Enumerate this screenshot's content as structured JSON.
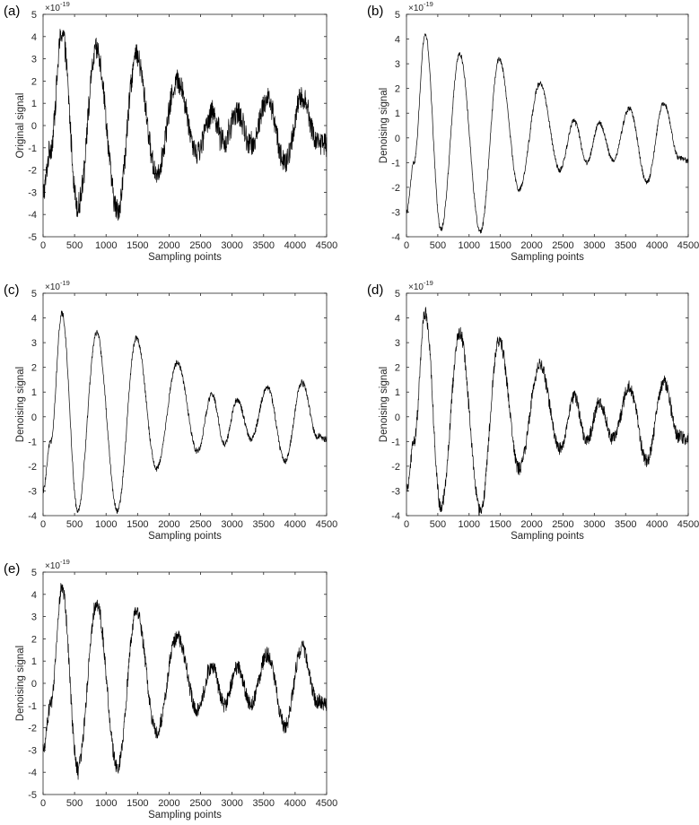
{
  "chart_data": [
    {
      "type": "line",
      "panel": "(a)",
      "xlabel": "Sampling points",
      "ylabel": "Original signal",
      "y_multiplier": "×10⁻¹⁹",
      "xlim": [
        0,
        4500
      ],
      "ylim": [
        -5,
        5
      ],
      "xticks": [
        0,
        500,
        1000,
        1500,
        2000,
        2500,
        3000,
        3500,
        4000,
        4500
      ],
      "yticks": [
        -5,
        -4,
        -3,
        -2,
        -1,
        0,
        1,
        2,
        3,
        4,
        5
      ],
      "noise_band": 0.55,
      "series": [
        {
          "x": [
            0,
            120,
            300,
            550,
            850,
            1180,
            1480,
            1800,
            2130,
            2450,
            2680,
            2880,
            3080,
            3300,
            3560,
            3840,
            4110,
            4350,
            4500
          ],
          "values": [
            -3.0,
            -1.0,
            4.2,
            -3.6,
            3.4,
            -3.8,
            3.1,
            -2.1,
            2.0,
            -1.2,
            0.6,
            -0.8,
            0.6,
            -0.9,
            1.2,
            -1.7,
            1.3,
            -0.7,
            -0.9
          ]
        }
      ]
    },
    {
      "type": "line",
      "panel": "(b)",
      "xlabel": "Sampling points",
      "ylabel": "Denoising signal",
      "y_multiplier": "×10⁻¹⁹",
      "xlim": [
        0,
        4500
      ],
      "ylim": [
        -4,
        5
      ],
      "xticks": [
        0,
        500,
        1000,
        1500,
        2000,
        2500,
        3000,
        3500,
        4000,
        4500
      ],
      "yticks": [
        -4,
        -3,
        -2,
        -1,
        0,
        1,
        2,
        3,
        4,
        5
      ],
      "noise_band": 0.1,
      "series": [
        {
          "x": [
            0,
            120,
            300,
            550,
            850,
            1180,
            1480,
            1800,
            2130,
            2450,
            2680,
            2880,
            3080,
            3300,
            3560,
            3840,
            4110,
            4350,
            4500
          ],
          "values": [
            -3.0,
            -1.0,
            4.2,
            -3.7,
            3.4,
            -3.8,
            3.2,
            -2.1,
            2.2,
            -1.3,
            0.7,
            -1.0,
            0.6,
            -0.9,
            1.2,
            -1.8,
            1.4,
            -0.8,
            -0.9
          ]
        }
      ]
    },
    {
      "type": "line",
      "panel": "(c)",
      "xlabel": "Sampling points",
      "ylabel": "Denoising signal",
      "y_multiplier": "×10⁻¹⁹",
      "xlim": [
        0,
        4500
      ],
      "ylim": [
        -4,
        5
      ],
      "xticks": [
        0,
        500,
        1000,
        1500,
        2000,
        2500,
        3000,
        3500,
        4000,
        4500
      ],
      "yticks": [
        -4,
        -3,
        -2,
        -1,
        0,
        1,
        2,
        3,
        4,
        5
      ],
      "noise_band": 0.12,
      "series": [
        {
          "x": [
            0,
            120,
            300,
            550,
            850,
            1180,
            1480,
            1800,
            2130,
            2450,
            2680,
            2880,
            3080,
            3300,
            3560,
            3840,
            4110,
            4350,
            4500
          ],
          "values": [
            -3.0,
            -1.0,
            4.2,
            -3.8,
            3.4,
            -3.8,
            3.2,
            -2.1,
            2.2,
            -1.4,
            0.9,
            -1.1,
            0.7,
            -0.9,
            1.2,
            -1.8,
            1.4,
            -0.8,
            -0.9
          ]
        }
      ]
    },
    {
      "type": "line",
      "panel": "(d)",
      "xlabel": "Sampling points",
      "ylabel": "Denoising signal",
      "y_multiplier": "×10⁻¹⁹",
      "xlim": [
        0,
        4500
      ],
      "ylim": [
        -4,
        5
      ],
      "xticks": [
        0,
        500,
        1000,
        1500,
        2000,
        2500,
        3000,
        3500,
        4000,
        4500
      ],
      "yticks": [
        -4,
        -3,
        -2,
        -1,
        0,
        1,
        2,
        3,
        4,
        5
      ],
      "noise_band": 0.28,
      "series": [
        {
          "x": [
            0,
            120,
            300,
            550,
            850,
            1180,
            1480,
            1800,
            2130,
            2450,
            2680,
            2880,
            3080,
            3300,
            3560,
            3840,
            4110,
            4350,
            4500
          ],
          "values": [
            -3.0,
            -1.0,
            4.2,
            -3.7,
            3.4,
            -3.8,
            3.1,
            -2.1,
            2.1,
            -1.3,
            0.8,
            -1.0,
            0.6,
            -0.9,
            1.2,
            -1.8,
            1.4,
            -0.8,
            -0.9
          ]
        }
      ]
    },
    {
      "type": "line",
      "panel": "(e)",
      "xlabel": "Sampling points",
      "ylabel": "Denoising signal",
      "y_multiplier": "×10⁻¹⁹",
      "xlim": [
        0,
        4500
      ],
      "ylim": [
        -5,
        5
      ],
      "xticks": [
        0,
        500,
        1000,
        1500,
        2000,
        2500,
        3000,
        3500,
        4000,
        4500
      ],
      "yticks": [
        -5,
        -4,
        -3,
        -2,
        -1,
        0,
        1,
        2,
        3,
        4,
        5
      ],
      "noise_band": 0.35,
      "series": [
        {
          "x": [
            0,
            120,
            300,
            550,
            850,
            1180,
            1480,
            1800,
            2130,
            2450,
            2680,
            2880,
            3080,
            3300,
            3560,
            3840,
            4110,
            4350,
            4500
          ],
          "values": [
            -3.0,
            -1.0,
            4.3,
            -3.8,
            3.6,
            -3.8,
            3.2,
            -2.2,
            2.1,
            -1.2,
            0.8,
            -1.0,
            0.7,
            -0.9,
            1.3,
            -1.9,
            1.6,
            -0.8,
            -1.0
          ]
        }
      ]
    }
  ]
}
